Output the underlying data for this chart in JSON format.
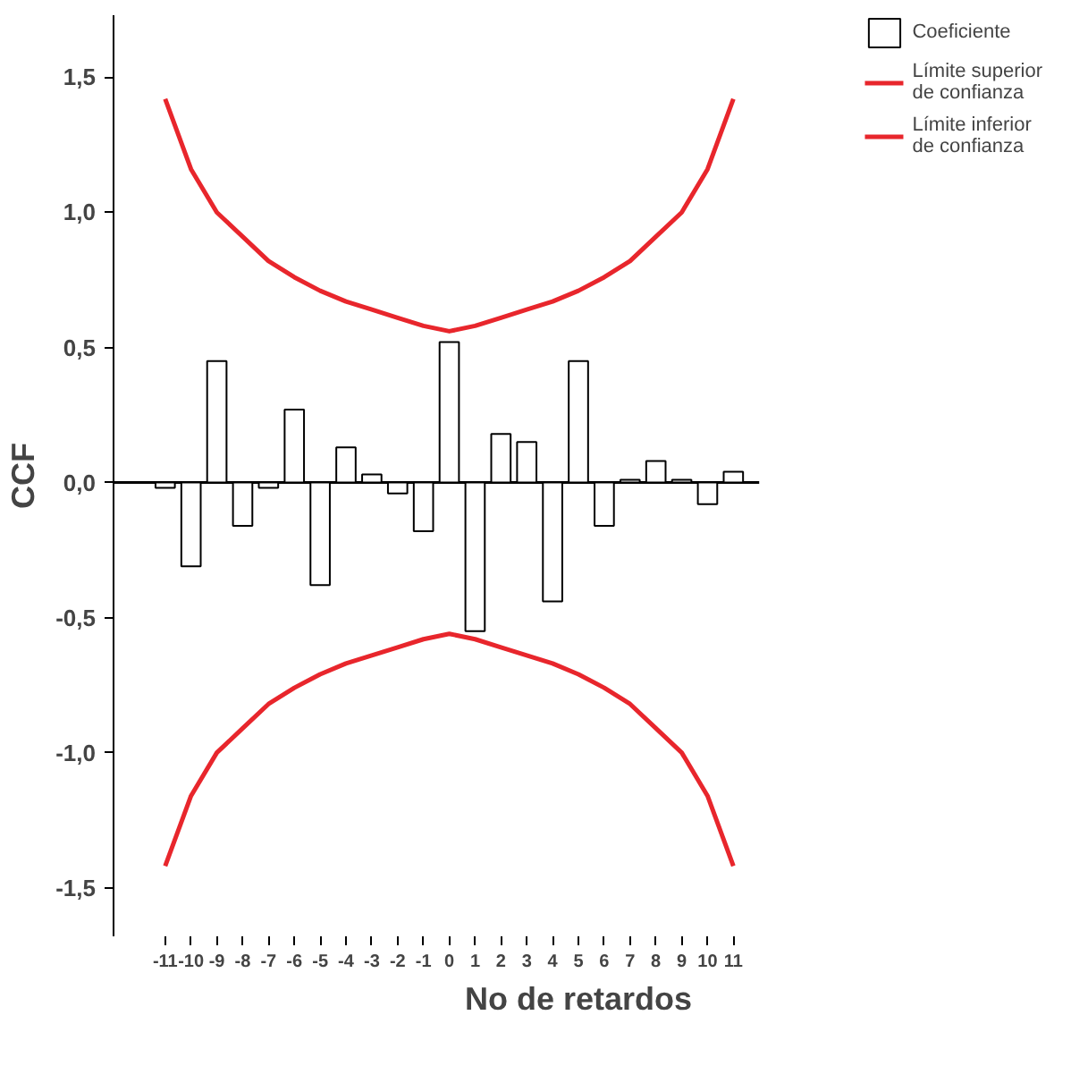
{
  "chart_data": {
    "type": "bar",
    "xlabel": "No de retardos",
    "ylabel": "CCF",
    "categories": [
      "-11",
      "-10",
      "-9",
      "-8",
      "-7",
      "-6",
      "-5",
      "-4",
      "-3",
      "-2",
      "-1",
      "0",
      "1",
      "2",
      "3",
      "4",
      "5",
      "6",
      "7",
      "8",
      "9",
      "10",
      "11"
    ],
    "series": [
      {
        "name": "Coeficiente",
        "color": "#ffffff",
        "values": [
          -0.02,
          -0.31,
          0.45,
          -0.16,
          -0.02,
          0.27,
          -0.38,
          0.13,
          0.03,
          -0.04,
          -0.18,
          0.52,
          -0.55,
          0.18,
          0.15,
          -0.44,
          0.45,
          -0.16,
          0.01,
          0.08,
          0.01,
          -0.08,
          0.04
        ]
      },
      {
        "name": "Límite superior de confianza",
        "type": "line",
        "color": "#e8262c",
        "values": [
          1.42,
          1.16,
          1.0,
          0.91,
          0.82,
          0.76,
          0.71,
          0.67,
          0.64,
          0.61,
          0.58,
          0.56,
          0.58,
          0.61,
          0.64,
          0.67,
          0.71,
          0.76,
          0.82,
          0.91,
          1.0,
          1.16,
          1.42
        ]
      },
      {
        "name": "Límite inferior de confianza",
        "type": "line",
        "color": "#e8262c",
        "values": [
          -1.42,
          -1.16,
          -1.0,
          -0.91,
          -0.82,
          -0.76,
          -0.71,
          -0.67,
          -0.64,
          -0.61,
          -0.58,
          -0.56,
          -0.58,
          -0.61,
          -0.64,
          -0.67,
          -0.71,
          -0.76,
          -0.82,
          -0.91,
          -1.0,
          -1.16,
          -1.42
        ]
      }
    ],
    "ylim": [
      -1.68,
      1.73
    ],
    "yticks": [
      {
        "value": -1.5,
        "label": "-1,5"
      },
      {
        "value": -1.0,
        "label": "-1,0"
      },
      {
        "value": -0.5,
        "label": "-0,5"
      },
      {
        "value": 0,
        "label": "0,0"
      },
      {
        "value": 0.5,
        "label": "0,5"
      },
      {
        "value": 1.0,
        "label": "1,0"
      },
      {
        "value": 1.5,
        "label": "1,5"
      }
    ],
    "ref_lines": [
      {
        "axis": "y",
        "value": 0,
        "color": "#000000"
      }
    ],
    "grid": false,
    "legend": "top right"
  }
}
